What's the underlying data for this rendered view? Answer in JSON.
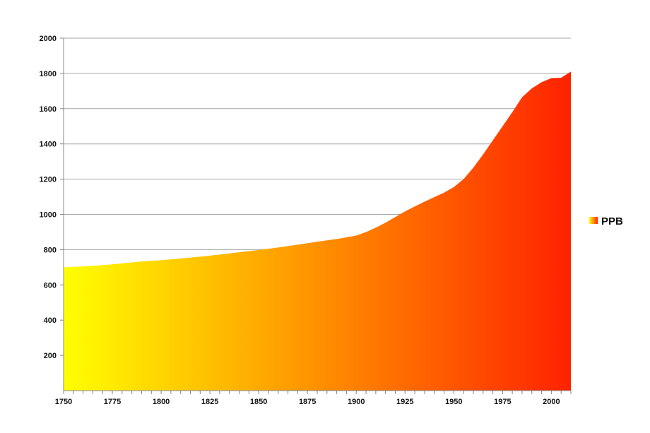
{
  "chart_data": {
    "type": "area",
    "title": "",
    "xlabel": "",
    "ylabel": "",
    "xlim": [
      1750,
      2010
    ],
    "ylim": [
      0,
      2000
    ],
    "x_ticks": [
      1750,
      1775,
      1800,
      1825,
      1850,
      1875,
      1900,
      1925,
      1950,
      1975,
      2000
    ],
    "y_ticks": [
      200,
      400,
      600,
      800,
      1000,
      1200,
      1400,
      1600,
      1800,
      2000
    ],
    "grid": "horizontal",
    "legend_position": "right",
    "series": [
      {
        "name": "PPB",
        "x": [
          1750,
          1760,
          1770,
          1780,
          1790,
          1800,
          1810,
          1820,
          1830,
          1840,
          1850,
          1860,
          1870,
          1880,
          1890,
          1900,
          1905,
          1910,
          1915,
          1920,
          1925,
          1930,
          1935,
          1940,
          1945,
          1950,
          1955,
          1960,
          1965,
          1970,
          1975,
          1980,
          1985,
          1990,
          1995,
          2000,
          2005,
          2010
        ],
        "values": [
          700,
          705,
          712,
          722,
          733,
          740,
          750,
          760,
          772,
          785,
          798,
          812,
          828,
          845,
          860,
          880,
          900,
          925,
          953,
          985,
          1017,
          1045,
          1072,
          1098,
          1123,
          1155,
          1200,
          1265,
          1340,
          1420,
          1500,
          1580,
          1665,
          1715,
          1750,
          1773,
          1775,
          1810
        ]
      }
    ],
    "colors": {
      "gradient_start": "#ffff00",
      "gradient_end": "#ff2200",
      "gridline": "#a6a6a6",
      "axis": "#888888"
    }
  }
}
